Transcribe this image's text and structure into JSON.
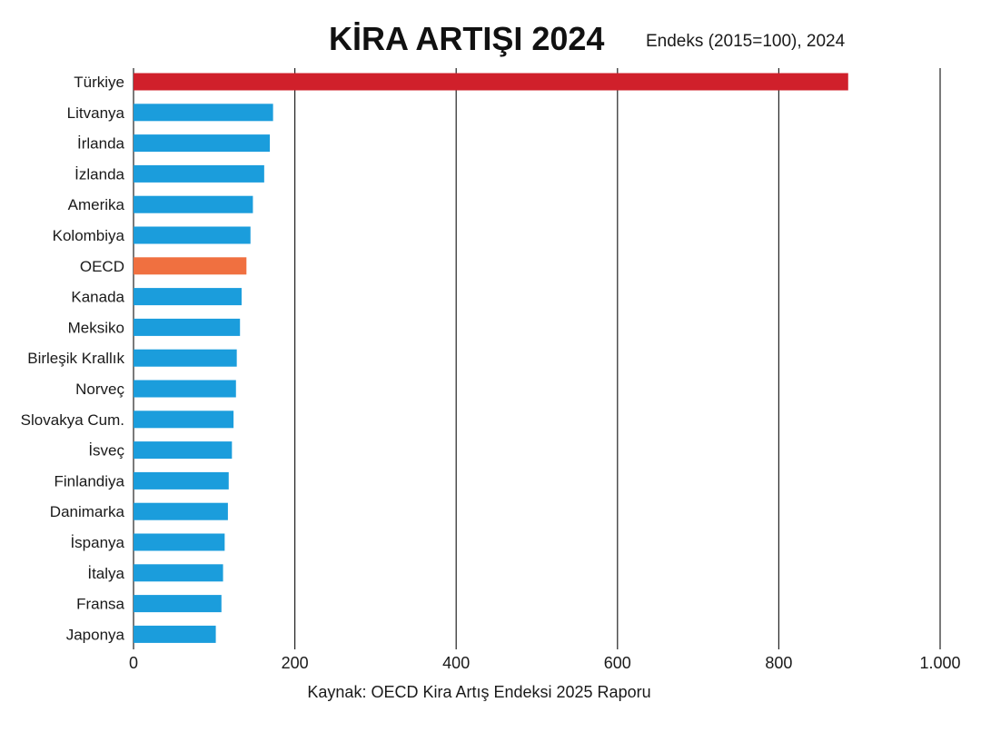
{
  "chart_data": {
    "type": "bar",
    "orientation": "horizontal",
    "title": "KİRA ARTIŞI 2024",
    "subtitle": "Endeks (2015=100), 2024",
    "source": "Kaynak: OECD Kira Artış Endeksi 2025 Raporu",
    "categories": [
      "Türkiye",
      "Litvanya",
      "İrlanda",
      "İzlanda",
      "Amerika",
      "Kolombiya",
      "OECD",
      "Kanada",
      "Meksiko",
      "Birleşik Krallık",
      "Norveç",
      "Slovakya Cum.",
      "İsveç",
      "Finlandiya",
      "Danimarka",
      "İspanya",
      "İtalya",
      "Fransa",
      "Japonya"
    ],
    "values": [
      886,
      173,
      169,
      162,
      148,
      145,
      140,
      134,
      132,
      128,
      127,
      124,
      122,
      118,
      117,
      113,
      111,
      109,
      102
    ],
    "highlight": {
      "Türkiye": "#d0202b",
      "OECD": "#f07040"
    },
    "bar_color": "#1b9ddc",
    "xlim": [
      0,
      1000
    ],
    "x_ticks": [
      0,
      200,
      400,
      600,
      800,
      1000
    ],
    "x_tick_labels": [
      "0",
      "200",
      "400",
      "600",
      "800",
      "1.000"
    ],
    "grid": true,
    "xlabel": "",
    "ylabel": ""
  }
}
